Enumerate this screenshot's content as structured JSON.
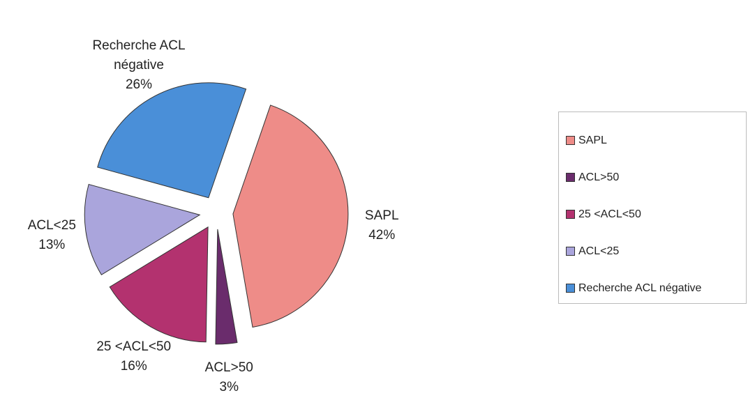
{
  "chart_data": {
    "type": "pie",
    "categories": [
      "SAPL",
      "ACL>50",
      "25 <ACL<50",
      "ACL<25",
      "Recherche ACL négative"
    ],
    "values": [
      42,
      3,
      16,
      13,
      26
    ],
    "value_labels": [
      "42%",
      "3%",
      "16%",
      "13%",
      "26%"
    ],
    "colors": [
      "#ee8c88",
      "#6a2c6c",
      "#b3326f",
      "#aaa5dc",
      "#4a8fd8"
    ],
    "legend": "right"
  }
}
